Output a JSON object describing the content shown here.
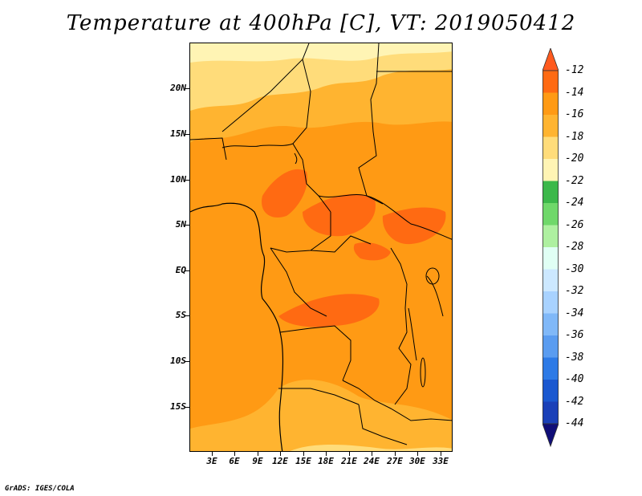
{
  "title": "Temperature at 400hPa [C], VT: 2019050412",
  "map": {
    "lat_labels": [
      "20N",
      "15N",
      "10N",
      "5N",
      "EQ",
      "5S",
      "10S",
      "15S"
    ],
    "lon_labels": [
      "3E",
      "6E",
      "9E",
      "12E",
      "15E",
      "18E",
      "21E",
      "24E",
      "27E",
      "30E",
      "33E"
    ]
  },
  "colorbar": {
    "levels": [
      "-12",
      "-14",
      "-16",
      "-18",
      "-20",
      "-22",
      "-24",
      "-26",
      "-28",
      "-30",
      "-32",
      "-34",
      "-36",
      "-38",
      "-40",
      "-42",
      "-44"
    ],
    "colors": {
      "above_-12": "#ff5a1e",
      "-14_to_-12": "#ff6a12",
      "-16_to_-14": "#ff9a14",
      "-18_to_-16": "#ffb430",
      "-20_to_-18": "#ffdc7a",
      "-22_to_-20": "#fff4b4",
      "-24_to_-22": "#3cb84a",
      "-26_to_-24": "#6fd86a",
      "-28_to_-26": "#aef0a0",
      "-30_to_-28": "#e0fff4",
      "-32_to_-30": "#cce8ff",
      "-34_to_-32": "#a8d2ff",
      "-36_to_-34": "#80b8f8",
      "-38_to_-36": "#5a9cf0",
      "-40_to_-38": "#2d7ae6",
      "-42_to_-40": "#1a58d0",
      "-44_to_-42": "#1a40b8",
      "below_-44": "#100e78"
    }
  },
  "footer": "GrADS: IGES/COLA"
}
